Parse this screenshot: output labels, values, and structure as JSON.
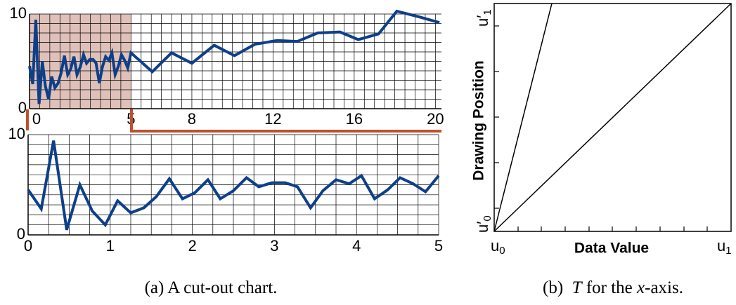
{
  "chart_data": [
    {
      "type": "line",
      "x": [
        0,
        0.16,
        0.31,
        0.47,
        0.63,
        0.78,
        0.94,
        1.09,
        1.25,
        1.41,
        1.56,
        1.72,
        1.88,
        2.03,
        2.19,
        2.34,
        2.5,
        2.66,
        2.81,
        2.97,
        3.13,
        3.28,
        3.44,
        3.59,
        3.75,
        3.91,
        4.06,
        4.22,
        4.38,
        4.53,
        4.69,
        4.84,
        5.0,
        6.05,
        7.0,
        8.0,
        9.1,
        10.1,
        11.1,
        12.2,
        13.2,
        14.2,
        15.3,
        16.2,
        17.2,
        18.1,
        19.2,
        20.2
      ],
      "series": [
        {
          "color": "#0d3f8a",
          "values": [
            4.5,
            2.6,
            9.4,
            0.5,
            5.0,
            2.4,
            1.0,
            3.4,
            2.2,
            2.7,
            3.8,
            5.6,
            3.6,
            4.2,
            5.5,
            3.6,
            4.4,
            5.7,
            4.8,
            5.2,
            5.2,
            4.8,
            2.7,
            4.4,
            5.5,
            5.1,
            5.9,
            3.6,
            4.5,
            5.7,
            5.1,
            4.3,
            5.9,
            3.9,
            5.9,
            4.8,
            6.7,
            5.6,
            6.8,
            7.2,
            7.1,
            8.0,
            8.1,
            7.3,
            7.9,
            10.3,
            9.7,
            9.1
          ]
        }
      ],
      "xlim": [
        0,
        20.3
      ],
      "ylim": [
        0,
        10
      ],
      "xticks": [
        0,
        5,
        8,
        12,
        16,
        20
      ],
      "yticks": [
        0,
        10
      ],
      "xgrid": [
        0,
        0.5,
        1,
        1.5,
        2,
        2.5,
        3,
        3.5,
        4,
        4.5,
        5,
        5.5,
        6,
        6.5,
        7,
        7.5,
        8,
        8.5,
        9,
        9.5,
        10,
        10.5,
        11,
        11.5,
        12,
        12.5,
        13,
        13.5,
        14,
        14.5,
        15,
        15.5,
        16,
        16.5,
        17,
        17.5,
        18,
        18.5,
        19,
        19.5,
        20
      ],
      "ygrid": [
        0,
        1,
        2,
        3,
        4,
        5,
        6,
        7,
        8,
        9,
        10
      ],
      "cutout": [
        0,
        5
      ],
      "cutout_color": "#dfc1b9"
    },
    {
      "type": "line",
      "x": [
        0,
        0.16,
        0.31,
        0.47,
        0.63,
        0.78,
        0.94,
        1.09,
        1.25,
        1.41,
        1.56,
        1.72,
        1.88,
        2.03,
        2.19,
        2.34,
        2.5,
        2.66,
        2.81,
        2.97,
        3.13,
        3.28,
        3.44,
        3.59,
        3.75,
        3.91,
        4.06,
        4.22,
        4.38,
        4.53,
        4.69,
        4.84,
        5.0
      ],
      "series": [
        {
          "color": "#0d3f8a",
          "values": [
            4.5,
            2.6,
            9.4,
            0.5,
            5.0,
            2.4,
            1.0,
            3.4,
            2.2,
            2.7,
            3.8,
            5.6,
            3.6,
            4.2,
            5.5,
            3.6,
            4.4,
            5.7,
            4.8,
            5.2,
            5.2,
            4.8,
            2.7,
            4.4,
            5.5,
            5.1,
            5.9,
            3.6,
            4.5,
            5.7,
            5.1,
            4.3,
            5.9
          ]
        }
      ],
      "xlim": [
        0,
        5
      ],
      "ylim": [
        0,
        10
      ],
      "xticks": [
        0,
        1,
        2,
        3,
        4,
        5
      ],
      "yticks": [
        0,
        10
      ],
      "xgrid": [
        0,
        0.25,
        0.5,
        0.75,
        1,
        1.25,
        1.5,
        1.75,
        2,
        2.25,
        2.5,
        2.75,
        3,
        3.25,
        3.5,
        3.75,
        4,
        4.25,
        4.5,
        4.75,
        5
      ],
      "ygrid": [
        0,
        1,
        2,
        3,
        4,
        5,
        6,
        7,
        8,
        9,
        10
      ]
    }
  ],
  "diagram": {
    "x_label": "Data Value",
    "y_label": "Drawing Position",
    "x_tick_labels": [
      {
        "base": "u",
        "sub": "0"
      },
      {
        "base": "u",
        "sub": "1"
      }
    ],
    "y_tick_labels": [
      {
        "base": "u′",
        "sub": "0"
      },
      {
        "base": "u′",
        "sub": "1"
      }
    ]
  },
  "captions": [
    [
      "(a)  A cut-out chart."
    ],
    [
      "(b)  ",
      "T",
      " for the ",
      "x",
      "-axis."
    ]
  ]
}
